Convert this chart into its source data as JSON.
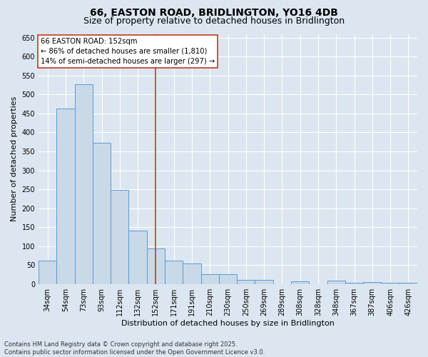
{
  "title": "66, EASTON ROAD, BRIDLINGTON, YO16 4DB",
  "subtitle": "Size of property relative to detached houses in Bridlington",
  "xlabel": "Distribution of detached houses by size in Bridlington",
  "ylabel": "Number of detached properties",
  "categories": [
    "34sqm",
    "54sqm",
    "73sqm",
    "93sqm",
    "112sqm",
    "132sqm",
    "152sqm",
    "171sqm",
    "191sqm",
    "210sqm",
    "230sqm",
    "250sqm",
    "269sqm",
    "289sqm",
    "308sqm",
    "328sqm",
    "348sqm",
    "367sqm",
    "387sqm",
    "406sqm",
    "426sqm"
  ],
  "values": [
    62,
    463,
    528,
    372,
    248,
    141,
    93,
    62,
    55,
    25,
    25,
    10,
    10,
    0,
    7,
    0,
    8,
    3,
    5,
    4,
    3
  ],
  "bar_color": "#c9d9e8",
  "bar_edge_color": "#5b9bd5",
  "vline_x_idx": 6,
  "vline_color": "#c0392b",
  "annotation_line1": "66 EASTON ROAD: 152sqm",
  "annotation_line2": "← 86% of detached houses are smaller (1,810)",
  "annotation_line3": "14% of semi-detached houses are larger (297) →",
  "annotation_box_color": "#ffffff",
  "annotation_box_edge": "#c0392b",
  "ylim": [
    0,
    660
  ],
  "yticks": [
    0,
    50,
    100,
    150,
    200,
    250,
    300,
    350,
    400,
    450,
    500,
    550,
    600,
    650
  ],
  "footnote": "Contains HM Land Registry data © Crown copyright and database right 2025.\nContains public sector information licensed under the Open Government Licence v3.0.",
  "bg_color": "#dce6f0",
  "plot_bg_color": "#dce6f0",
  "grid_color": "#ffffff",
  "title_fontsize": 10,
  "subtitle_fontsize": 9,
  "tick_fontsize": 7,
  "label_fontsize": 8,
  "footnote_fontsize": 6
}
